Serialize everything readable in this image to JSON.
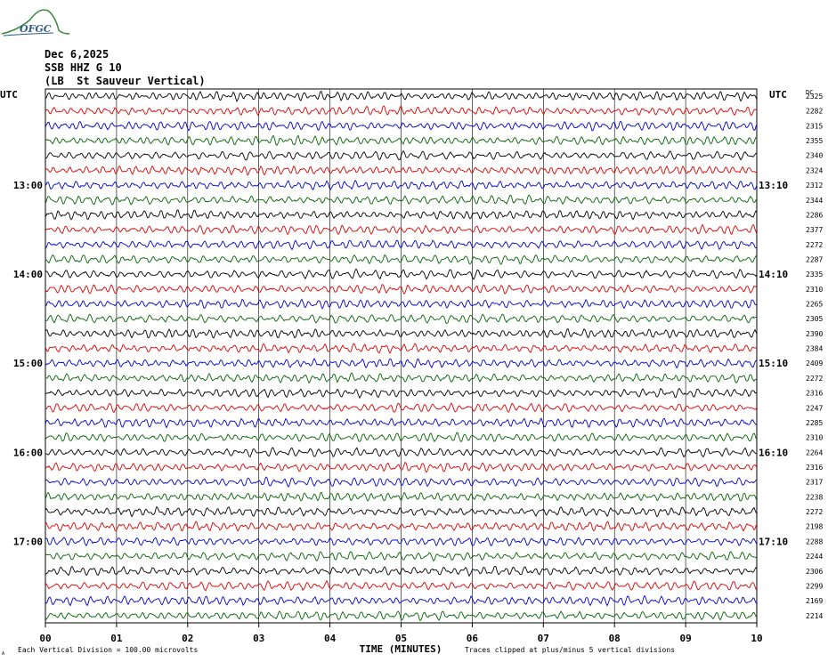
{
  "header": {
    "logo_text": "OFGC",
    "date": "Dec 6,2025",
    "channel": "SSB HHZ G 10",
    "station": "(LB  St Sauveur Vertical)"
  },
  "chart_data": {
    "type": "line",
    "title": "",
    "xlabel": "TIME (MINUTES)",
    "left_axis_label": "UTC",
    "right_axis_label": "UTC",
    "right_extra_label": "DC",
    "x_ticks": [
      "00",
      "01",
      "02",
      "03",
      "04",
      "05",
      "06",
      "07",
      "08",
      "09",
      "10"
    ],
    "xlim": [
      0,
      10
    ],
    "left_hour_labels": [
      {
        "row": 6,
        "label": "13:00"
      },
      {
        "row": 12,
        "label": "14:00"
      },
      {
        "row": 18,
        "label": "15:00"
      },
      {
        "row": 24,
        "label": "16:00"
      },
      {
        "row": 30,
        "label": "17:00"
      }
    ],
    "right_hour_labels": [
      {
        "row": 6,
        "label": "13:10"
      },
      {
        "row": 12,
        "label": "14:10"
      },
      {
        "row": 18,
        "label": "15:10"
      },
      {
        "row": 24,
        "label": "16:10"
      },
      {
        "row": 30,
        "label": "17:10"
      }
    ],
    "trace_colors": [
      "#000000",
      "#dd0000",
      "#0000cc",
      "#006400"
    ],
    "dc_offsets": [
      2325,
      2282,
      2315,
      2355,
      2340,
      2324,
      2312,
      2344,
      2286,
      2377,
      2272,
      2287,
      2335,
      2310,
      2265,
      2305,
      2390,
      2384,
      2409,
      2272,
      2316,
      2247,
      2285,
      2310,
      2264,
      2316,
      2317,
      2238,
      2272,
      2198,
      2288,
      2244,
      2306,
      2299,
      2169,
      2214
    ],
    "footer_left": "Each Vertical Division =  100.00 microvolts",
    "footer_right": "Traces clipped at plus/minus 5 vertical divisions",
    "footer_corner": "A"
  }
}
